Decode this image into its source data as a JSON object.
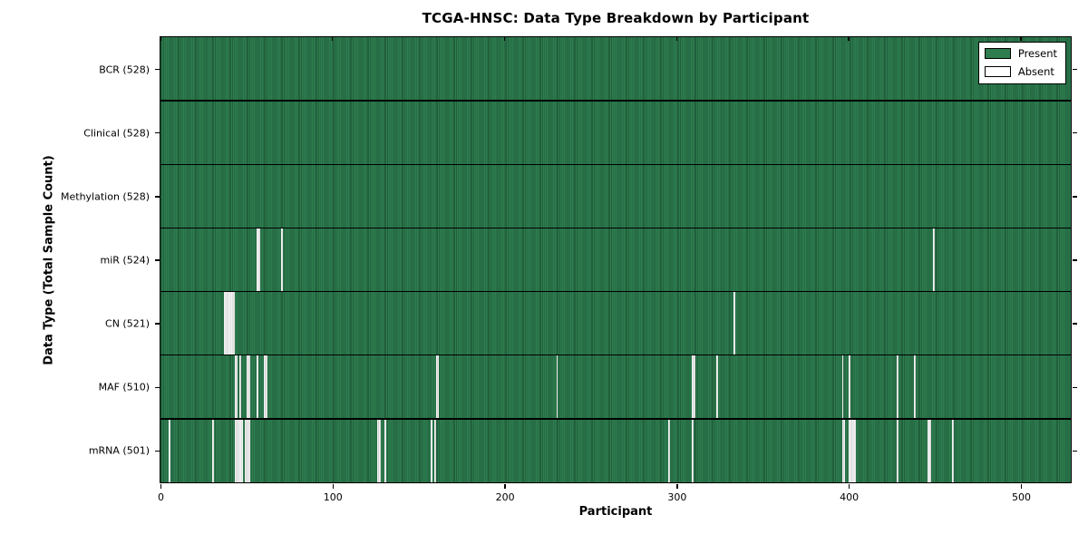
{
  "chart_data": {
    "type": "heatmap",
    "title": "TCGA-HNSC: Data Type Breakdown by Participant",
    "xlabel": "Participant",
    "ylabel": "Data Type (Total Sample Count)",
    "n_participants": 528,
    "x_max": 529,
    "x_ticks": [
      0,
      100,
      200,
      300,
      400,
      500
    ],
    "grid": false,
    "colors": {
      "present": "#2e7d4f",
      "present_edge": "#20603c",
      "absent": "#f3f3f3",
      "absent_edge": "#d2d2d2",
      "frame": "#000000"
    },
    "legend": {
      "position": "top-right",
      "entries": [
        {
          "label": "Present",
          "color": "#2e7d4f"
        },
        {
          "label": "Absent",
          "color": "#ffffff"
        }
      ]
    },
    "rows": [
      {
        "data_type": "BCR",
        "total": 528,
        "label": "BCR (528)",
        "absent_segments": []
      },
      {
        "data_type": "Clinical",
        "total": 528,
        "label": "Clinical (528)",
        "absent_segments": []
      },
      {
        "data_type": "Methylation",
        "total": 528,
        "label": "Methylation (528)",
        "absent_segments": []
      },
      {
        "data_type": "miR",
        "total": 524,
        "label": "miR (524)",
        "absent_segments": [
          {
            "start": 56,
            "count": 2
          },
          {
            "start": 70,
            "count": 1
          },
          {
            "start": 449,
            "count": 1
          }
        ]
      },
      {
        "data_type": "CN",
        "total": 521,
        "label": "CN (521)",
        "absent_segments": [
          {
            "start": 37,
            "count": 6
          },
          {
            "start": 333,
            "count": 1
          }
        ]
      },
      {
        "data_type": "MAF",
        "total": 510,
        "label": "MAF (510)",
        "absent_segments": [
          {
            "start": 43,
            "count": 2
          },
          {
            "start": 46,
            "count": 1
          },
          {
            "start": 50,
            "count": 2
          },
          {
            "start": 56,
            "count": 1
          },
          {
            "start": 60,
            "count": 2
          },
          {
            "start": 160,
            "count": 2
          },
          {
            "start": 230,
            "count": 1
          },
          {
            "start": 309,
            "count": 2
          },
          {
            "start": 323,
            "count": 1
          },
          {
            "start": 396,
            "count": 1
          },
          {
            "start": 400,
            "count": 1
          },
          {
            "start": 428,
            "count": 1
          },
          {
            "start": 438,
            "count": 1
          }
        ]
      },
      {
        "data_type": "mRNA",
        "total": 501,
        "label": "mRNA (501)",
        "absent_segments": [
          {
            "start": 5,
            "count": 1
          },
          {
            "start": 30,
            "count": 1
          },
          {
            "start": 43,
            "count": 5
          },
          {
            "start": 49,
            "count": 3
          },
          {
            "start": 126,
            "count": 2
          },
          {
            "start": 130,
            "count": 1
          },
          {
            "start": 157,
            "count": 1
          },
          {
            "start": 159,
            "count": 1
          },
          {
            "start": 295,
            "count": 1
          },
          {
            "start": 309,
            "count": 1
          },
          {
            "start": 396,
            "count": 2
          },
          {
            "start": 400,
            "count": 4
          },
          {
            "start": 428,
            "count": 1
          },
          {
            "start": 446,
            "count": 2
          },
          {
            "start": 460,
            "count": 1
          }
        ]
      }
    ]
  }
}
